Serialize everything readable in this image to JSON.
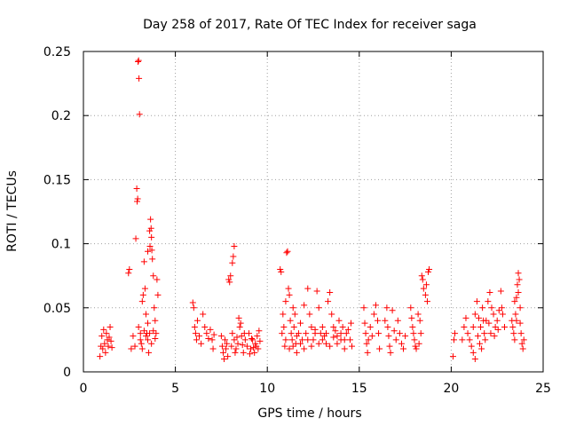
{
  "chart_data": {
    "type": "scatter",
    "title": "Day 258 of 2017, Rate Of TEC Index for receiver saga",
    "xlabel": "GPS time / hours",
    "ylabel": "ROTI / TECUs",
    "xlim": [
      0,
      25
    ],
    "ylim": [
      0,
      0.25
    ],
    "xticks": [
      0,
      5,
      10,
      15,
      20,
      25
    ],
    "yticks": [
      0,
      0.05,
      0.1,
      0.15,
      0.2,
      0.25
    ],
    "xtick_labels": [
      "0",
      "5",
      "10",
      "15",
      "20",
      "25"
    ],
    "ytick_labels": [
      "0",
      "0.05",
      "0.1",
      "0.15",
      "0.2",
      "0.25"
    ],
    "grid": true,
    "marker": "+",
    "color": "#ff0000",
    "series": [
      {
        "name": "ROTI",
        "points": [
          [
            0.9,
            0.012
          ],
          [
            0.95,
            0.02
          ],
          [
            1.0,
            0.028
          ],
          [
            1.05,
            0.018
          ],
          [
            1.1,
            0.033
          ],
          [
            1.15,
            0.022
          ],
          [
            1.2,
            0.015
          ],
          [
            1.25,
            0.03
          ],
          [
            1.3,
            0.025
          ],
          [
            1.35,
            0.02
          ],
          [
            1.4,
            0.027
          ],
          [
            1.45,
            0.035
          ],
          [
            1.5,
            0.024
          ],
          [
            1.55,
            0.019
          ],
          [
            2.45,
            0.077
          ],
          [
            2.5,
            0.08
          ],
          [
            2.6,
            0.018
          ],
          [
            2.7,
            0.028
          ],
          [
            2.8,
            0.02
          ],
          [
            2.85,
            0.104
          ],
          [
            2.9,
            0.143
          ],
          [
            2.92,
            0.133
          ],
          [
            2.95,
            0.135
          ],
          [
            2.97,
            0.242
          ],
          [
            3.0,
            0.243
          ],
          [
            3.02,
            0.229
          ],
          [
            3.05,
            0.201
          ],
          [
            3.1,
            0.03
          ],
          [
            3.15,
            0.022
          ],
          [
            3.2,
            0.055
          ],
          [
            3.25,
            0.06
          ],
          [
            3.3,
            0.086
          ],
          [
            3.35,
            0.065
          ],
          [
            3.4,
            0.045
          ],
          [
            3.45,
            0.03
          ],
          [
            3.5,
            0.025
          ],
          [
            3.55,
            0.015
          ],
          [
            3.6,
            0.11
          ],
          [
            3.65,
            0.119
          ],
          [
            3.7,
            0.105
          ],
          [
            3.72,
            0.095
          ],
          [
            3.75,
            0.088
          ],
          [
            3.8,
            0.075
          ],
          [
            3.85,
            0.05
          ],
          [
            3.9,
            0.04
          ],
          [
            3.95,
            0.03
          ],
          [
            4.0,
            0.072
          ],
          [
            4.05,
            0.06
          ],
          [
            3.0,
            0.035
          ],
          [
            3.1,
            0.025
          ],
          [
            3.2,
            0.018
          ],
          [
            3.3,
            0.032
          ],
          [
            3.4,
            0.028
          ],
          [
            3.5,
            0.038
          ],
          [
            3.6,
            0.03
          ],
          [
            3.7,
            0.022
          ],
          [
            3.8,
            0.032
          ],
          [
            3.9,
            0.026
          ],
          [
            3.62,
            0.098
          ],
          [
            3.68,
            0.112
          ],
          [
            3.5,
            0.094
          ],
          [
            5.95,
            0.054
          ],
          [
            6.0,
            0.05
          ],
          [
            6.05,
            0.035
          ],
          [
            6.1,
            0.03
          ],
          [
            6.15,
            0.025
          ],
          [
            6.2,
            0.04
          ],
          [
            6.3,
            0.028
          ],
          [
            6.4,
            0.022
          ],
          [
            6.5,
            0.045
          ],
          [
            6.6,
            0.035
          ],
          [
            6.7,
            0.03
          ],
          [
            6.8,
            0.026
          ],
          [
            6.9,
            0.033
          ],
          [
            7.0,
            0.025
          ],
          [
            7.05,
            0.018
          ],
          [
            7.1,
            0.029
          ],
          [
            7.5,
            0.028
          ],
          [
            7.55,
            0.02
          ],
          [
            7.6,
            0.015
          ],
          [
            7.65,
            0.01
          ],
          [
            7.7,
            0.025
          ],
          [
            7.75,
            0.018
          ],
          [
            7.8,
            0.022
          ],
          [
            7.85,
            0.012
          ],
          [
            7.9,
            0.072
          ],
          [
            7.95,
            0.07
          ],
          [
            8.0,
            0.075
          ],
          [
            8.1,
            0.085
          ],
          [
            8.15,
            0.09
          ],
          [
            8.2,
            0.098
          ],
          [
            8.05,
            0.02
          ],
          [
            8.1,
            0.03
          ],
          [
            8.2,
            0.025
          ],
          [
            8.3,
            0.018
          ],
          [
            8.4,
            0.022
          ],
          [
            8.5,
            0.035
          ],
          [
            8.6,
            0.028
          ],
          [
            8.7,
            0.015
          ],
          [
            8.8,
            0.025
          ],
          [
            8.9,
            0.02
          ],
          [
            9.0,
            0.03
          ],
          [
            9.1,
            0.018
          ],
          [
            9.2,
            0.025
          ],
          [
            9.3,
            0.015
          ],
          [
            9.35,
            0.022
          ],
          [
            9.4,
            0.02
          ],
          [
            9.45,
            0.028
          ],
          [
            9.5,
            0.018
          ],
          [
            9.55,
            0.032
          ],
          [
            9.6,
            0.024
          ],
          [
            8.45,
            0.042
          ],
          [
            8.55,
            0.038
          ],
          [
            8.25,
            0.015
          ],
          [
            8.35,
            0.027
          ],
          [
            8.65,
            0.021
          ],
          [
            8.75,
            0.03
          ],
          [
            9.05,
            0.014
          ],
          [
            9.15,
            0.026
          ],
          [
            9.25,
            0.019
          ],
          [
            10.7,
            0.08
          ],
          [
            10.75,
            0.078
          ],
          [
            10.8,
            0.03
          ],
          [
            10.85,
            0.045
          ],
          [
            10.9,
            0.035
          ],
          [
            10.95,
            0.02
          ],
          [
            11.0,
            0.055
          ],
          [
            11.05,
            0.093
          ],
          [
            11.1,
            0.094
          ],
          [
            11.15,
            0.065
          ],
          [
            11.2,
            0.06
          ],
          [
            11.25,
            0.04
          ],
          [
            11.3,
            0.03
          ],
          [
            11.35,
            0.025
          ],
          [
            11.4,
            0.05
          ],
          [
            11.45,
            0.035
          ],
          [
            11.5,
            0.045
          ],
          [
            11.55,
            0.022
          ],
          [
            11.6,
            0.015
          ],
          [
            11.7,
            0.03
          ],
          [
            11.8,
            0.038
          ],
          [
            11.9,
            0.025
          ],
          [
            12.0,
            0.052
          ],
          [
            12.1,
            0.03
          ],
          [
            12.2,
            0.065
          ],
          [
            12.3,
            0.045
          ],
          [
            12.4,
            0.035
          ],
          [
            12.5,
            0.025
          ],
          [
            12.6,
            0.033
          ],
          [
            12.7,
            0.063
          ],
          [
            12.8,
            0.05
          ],
          [
            12.9,
            0.03
          ],
          [
            13.0,
            0.035
          ],
          [
            13.1,
            0.028
          ],
          [
            13.2,
            0.022
          ],
          [
            13.3,
            0.055
          ],
          [
            13.4,
            0.062
          ],
          [
            13.5,
            0.045
          ],
          [
            13.6,
            0.035
          ],
          [
            13.7,
            0.032
          ],
          [
            13.8,
            0.028
          ],
          [
            13.9,
            0.04
          ],
          [
            14.0,
            0.025
          ],
          [
            14.1,
            0.035
          ],
          [
            14.2,
            0.018
          ],
          [
            14.3,
            0.03
          ],
          [
            14.4,
            0.033
          ],
          [
            14.5,
            0.025
          ],
          [
            14.55,
            0.038
          ],
          [
            14.6,
            0.02
          ],
          [
            11.0,
            0.025
          ],
          [
            11.2,
            0.018
          ],
          [
            11.4,
            0.02
          ],
          [
            11.6,
            0.028
          ],
          [
            11.8,
            0.022
          ],
          [
            12.0,
            0.018
          ],
          [
            12.2,
            0.025
          ],
          [
            12.4,
            0.02
          ],
          [
            12.6,
            0.03
          ],
          [
            12.8,
            0.022
          ],
          [
            13.0,
            0.025
          ],
          [
            13.2,
            0.03
          ],
          [
            13.4,
            0.02
          ],
          [
            13.6,
            0.027
          ],
          [
            13.8,
            0.022
          ],
          [
            14.0,
            0.03
          ],
          [
            14.2,
            0.025
          ],
          [
            15.25,
            0.05
          ],
          [
            15.3,
            0.038
          ],
          [
            15.35,
            0.03
          ],
          [
            15.4,
            0.022
          ],
          [
            15.45,
            0.015
          ],
          [
            15.5,
            0.025
          ],
          [
            15.6,
            0.035
          ],
          [
            15.7,
            0.028
          ],
          [
            15.8,
            0.045
          ],
          [
            15.9,
            0.052
          ],
          [
            16.0,
            0.04
          ],
          [
            16.05,
            0.03
          ],
          [
            16.1,
            0.018
          ],
          [
            16.4,
            0.04
          ],
          [
            16.5,
            0.05
          ],
          [
            16.55,
            0.035
          ],
          [
            16.6,
            0.028
          ],
          [
            16.65,
            0.02
          ],
          [
            16.7,
            0.015
          ],
          [
            16.8,
            0.048
          ],
          [
            16.9,
            0.032
          ],
          [
            17.0,
            0.025
          ],
          [
            17.1,
            0.04
          ],
          [
            17.2,
            0.03
          ],
          [
            17.3,
            0.022
          ],
          [
            17.4,
            0.018
          ],
          [
            17.5,
            0.028
          ],
          [
            17.8,
            0.05
          ],
          [
            17.85,
            0.042
          ],
          [
            17.9,
            0.035
          ],
          [
            17.95,
            0.03
          ],
          [
            18.0,
            0.025
          ],
          [
            18.05,
            0.02
          ],
          [
            18.1,
            0.018
          ],
          [
            18.2,
            0.045
          ],
          [
            18.3,
            0.04
          ],
          [
            18.4,
            0.075
          ],
          [
            18.45,
            0.072
          ],
          [
            18.5,
            0.065
          ],
          [
            18.6,
            0.06
          ],
          [
            18.7,
            0.055
          ],
          [
            18.75,
            0.078
          ],
          [
            18.8,
            0.08
          ],
          [
            18.65,
            0.068
          ],
          [
            18.35,
            0.03
          ],
          [
            18.25,
            0.022
          ],
          [
            20.1,
            0.012
          ],
          [
            20.15,
            0.025
          ],
          [
            20.2,
            0.03
          ],
          [
            20.6,
            0.025
          ],
          [
            20.7,
            0.035
          ],
          [
            20.8,
            0.042
          ],
          [
            20.9,
            0.03
          ],
          [
            21.0,
            0.025
          ],
          [
            21.1,
            0.02
          ],
          [
            21.2,
            0.035
          ],
          [
            21.3,
            0.045
          ],
          [
            21.4,
            0.055
          ],
          [
            21.5,
            0.042
          ],
          [
            21.6,
            0.035
          ],
          [
            21.7,
            0.05
          ],
          [
            21.8,
            0.03
          ],
          [
            21.9,
            0.04
          ],
          [
            22.0,
            0.055
          ],
          [
            22.1,
            0.062
          ],
          [
            22.2,
            0.05
          ],
          [
            22.3,
            0.045
          ],
          [
            22.4,
            0.035
          ],
          [
            22.5,
            0.04
          ],
          [
            22.6,
            0.048
          ],
          [
            22.7,
            0.063
          ],
          [
            22.8,
            0.045
          ],
          [
            22.9,
            0.035
          ],
          [
            21.2,
            0.015
          ],
          [
            21.3,
            0.01
          ],
          [
            21.45,
            0.028
          ],
          [
            21.55,
            0.022
          ],
          [
            21.65,
            0.018
          ],
          [
            21.75,
            0.04
          ],
          [
            21.85,
            0.025
          ],
          [
            22.05,
            0.038
          ],
          [
            22.15,
            0.03
          ],
          [
            22.35,
            0.028
          ],
          [
            22.55,
            0.033
          ],
          [
            22.75,
            0.05
          ],
          [
            23.3,
            0.04
          ],
          [
            23.35,
            0.035
          ],
          [
            23.4,
            0.03
          ],
          [
            23.45,
            0.025
          ],
          [
            23.5,
            0.045
          ],
          [
            23.55,
            0.058
          ],
          [
            23.6,
            0.068
          ],
          [
            23.65,
            0.077
          ],
          [
            23.7,
            0.072
          ],
          [
            23.75,
            0.05
          ],
          [
            23.8,
            0.03
          ],
          [
            23.85,
            0.022
          ],
          [
            23.9,
            0.018
          ],
          [
            23.95,
            0.025
          ],
          [
            23.45,
            0.055
          ],
          [
            23.55,
            0.04
          ],
          [
            23.65,
            0.062
          ],
          [
            23.75,
            0.038
          ]
        ]
      }
    ]
  }
}
